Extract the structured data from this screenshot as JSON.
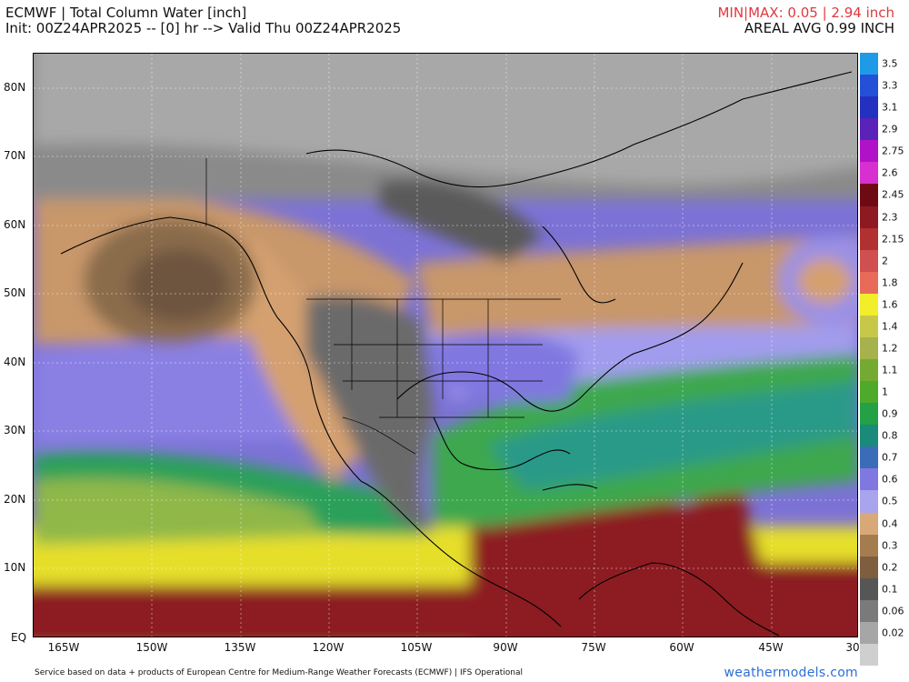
{
  "header": {
    "title": "ECMWF | Total Column Water [inch]",
    "init": "Init: 00Z24APR2025 -- [0] hr --> Valid Thu 00Z24APR2025",
    "minmax": "MIN|MAX: 0.05 | 2.94 inch",
    "areal_avg": "AREAL AVG 0.99 INCH"
  },
  "map": {
    "lat_labels": [
      "80N",
      "70N",
      "60N",
      "50N",
      "40N",
      "30N",
      "20N",
      "10N",
      "EQ"
    ],
    "lon_labels": [
      "165W",
      "150W",
      "135W",
      "120W",
      "105W",
      "90W",
      "75W",
      "60W",
      "45W",
      "30"
    ]
  },
  "colorbar": {
    "labels": [
      "3.5",
      "3.3",
      "3.1",
      "2.9",
      "2.75",
      "2.6",
      "2.45",
      "2.3",
      "2.15",
      "2",
      "1.8",
      "1.6",
      "1.4",
      "1.2",
      "1.1",
      "1",
      "0.9",
      "0.8",
      "0.7",
      "0.6",
      "0.5",
      "0.4",
      "0.3",
      "0.2",
      "0.1",
      "0.06",
      "0.02"
    ],
    "colors": [
      "#1e9ae6",
      "#2450d8",
      "#2330c0",
      "#5a22b8",
      "#b012c8",
      "#d830d0",
      "#6e0a14",
      "#8c1a20",
      "#b23030",
      "#d05050",
      "#e86a5a",
      "#f2ee2a",
      "#c7c84a",
      "#a6b24c",
      "#74aa32",
      "#4eaa2a",
      "#24a046",
      "#1a8a7a",
      "#3a6cb8",
      "#8078e0",
      "#a8a4ee",
      "#d8a878",
      "#a47c4e",
      "#7e5e3c",
      "#565656",
      "#7a7a7a",
      "#a6a6a6",
      "#cfcfcf"
    ]
  },
  "footer": {
    "credit": "Service based on data + products of European Centre for Medium-Range Weather Forecasts (ECMWF) | IFS Operational",
    "brand": "weathermodels.com"
  }
}
